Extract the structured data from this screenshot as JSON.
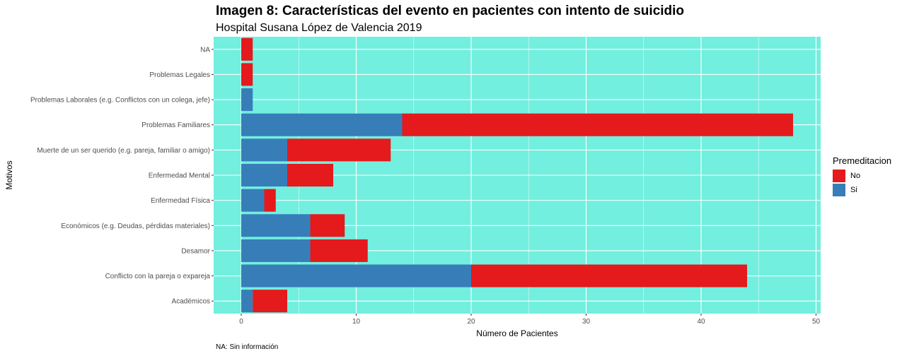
{
  "chart_data": {
    "type": "bar",
    "orientation": "horizontal",
    "stacked": true,
    "title": "Imagen 8: Características del evento en pacientes con intento de suicidio",
    "subtitle": "Hospital Susana López de Valencia 2019",
    "caption": "NA: Sin información",
    "xlabel": "Número de Pacientes",
    "ylabel": "Motivos",
    "xlim": [
      -2.4,
      50.4
    ],
    "xticks": [
      0,
      10,
      20,
      30,
      40,
      50
    ],
    "categories": [
      "NA",
      "Problemas Legales",
      "Problemas Laborales (e.g. Conflictos con un colega, jefe)",
      "Problemas Familiares",
      "Muerte de un ser querido (e.g. pareja, familiar o amigo)",
      "Enfermedad Mental",
      "Enfermedad Física",
      "Económicos (e.g. Deudas, pérdidas materiales)",
      "Desamor",
      "Conflicto con la pareja o expareja",
      "Académicos"
    ],
    "series": [
      {
        "name": "Si",
        "color": "#377EB8",
        "values": [
          0,
          0,
          1,
          14,
          4,
          4,
          2,
          6,
          6,
          20,
          1
        ]
      },
      {
        "name": "No",
        "color": "#E41A1C",
        "values": [
          1,
          1,
          0,
          34,
          9,
          4,
          1,
          3,
          5,
          24,
          3
        ]
      }
    ],
    "legend": {
      "title": "Premeditacion",
      "position": "right",
      "items": [
        {
          "name": "No",
          "color": "#E41A1C"
        },
        {
          "name": "Si",
          "color": "#377EB8"
        }
      ]
    },
    "panel_background": "#72EFDF",
    "grid": true
  }
}
